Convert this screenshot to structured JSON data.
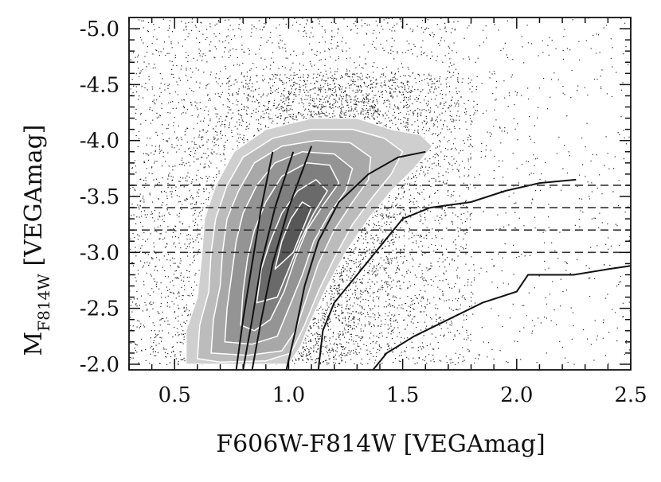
{
  "chart_data": {
    "type": "scatter",
    "title": "",
    "xlabel": "F606W-F814W [VEGAmag]",
    "ylabel_main": "M",
    "ylabel_sub": "F814W",
    "ylabel_tail": " [VEGAmag]",
    "xlim": [
      0.3,
      2.5
    ],
    "ylim": [
      -1.95,
      -5.1
    ],
    "y_inverted": true,
    "x_ticks": [
      0.5,
      1.0,
      1.5,
      2.0,
      2.5
    ],
    "x_tick_labels": [
      "0.5",
      "1.0",
      "1.5",
      "2.0",
      "2.5"
    ],
    "y_ticks": [
      -5.0,
      -4.5,
      -4.0,
      -3.5,
      -3.0,
      -2.5,
      -2.0
    ],
    "y_tick_labels": [
      "-5.0",
      "-4.5",
      "-4.0",
      "-3.5",
      "-3.0",
      "-2.5",
      "-2.0"
    ],
    "grid": false,
    "hlines": [
      -3.6,
      -3.4,
      -3.2,
      -3.0
    ],
    "scatter_note_points": 9000,
    "density_contours": [
      {
        "level": 1,
        "fill": "#cfcfcf",
        "points": [
          [
            0.55,
            -2.0
          ],
          [
            0.55,
            -2.3
          ],
          [
            0.6,
            -2.6
          ],
          [
            0.62,
            -3.0
          ],
          [
            0.63,
            -3.3
          ],
          [
            0.68,
            -3.6
          ],
          [
            0.76,
            -3.9
          ],
          [
            0.9,
            -4.1
          ],
          [
            1.1,
            -4.2
          ],
          [
            1.3,
            -4.2
          ],
          [
            1.45,
            -4.1
          ],
          [
            1.58,
            -4.05
          ],
          [
            1.63,
            -3.95
          ],
          [
            1.55,
            -3.75
          ],
          [
            1.45,
            -3.55
          ],
          [
            1.35,
            -3.3
          ],
          [
            1.25,
            -3.0
          ],
          [
            1.17,
            -2.7
          ],
          [
            1.1,
            -2.4
          ],
          [
            1.05,
            -2.15
          ],
          [
            1.0,
            -2.0
          ]
        ]
      },
      {
        "level": 2,
        "fill": "#bcbcbc",
        "points": [
          [
            0.6,
            -2.05
          ],
          [
            0.61,
            -2.35
          ],
          [
            0.65,
            -2.65
          ],
          [
            0.66,
            -3.0
          ],
          [
            0.68,
            -3.3
          ],
          [
            0.73,
            -3.6
          ],
          [
            0.8,
            -3.85
          ],
          [
            0.93,
            -4.02
          ],
          [
            1.1,
            -4.1
          ],
          [
            1.28,
            -4.1
          ],
          [
            1.42,
            -4.02
          ],
          [
            1.5,
            -3.9
          ],
          [
            1.45,
            -3.7
          ],
          [
            1.37,
            -3.5
          ],
          [
            1.28,
            -3.25
          ],
          [
            1.2,
            -2.95
          ],
          [
            1.13,
            -2.65
          ],
          [
            1.07,
            -2.35
          ],
          [
            1.01,
            -2.1
          ],
          [
            0.9,
            -2.03
          ],
          [
            0.7,
            -2.02
          ]
        ]
      },
      {
        "level": 3,
        "fill": "#a8a8a8",
        "points": [
          [
            0.66,
            -2.1
          ],
          [
            0.67,
            -2.4
          ],
          [
            0.7,
            -2.7
          ],
          [
            0.71,
            -3.0
          ],
          [
            0.73,
            -3.3
          ],
          [
            0.78,
            -3.55
          ],
          [
            0.85,
            -3.8
          ],
          [
            0.97,
            -3.95
          ],
          [
            1.12,
            -4.0
          ],
          [
            1.27,
            -3.98
          ],
          [
            1.36,
            -3.85
          ],
          [
            1.35,
            -3.65
          ],
          [
            1.28,
            -3.45
          ],
          [
            1.2,
            -3.2
          ],
          [
            1.13,
            -2.9
          ],
          [
            1.08,
            -2.6
          ],
          [
            1.03,
            -2.3
          ],
          [
            0.97,
            -2.12
          ],
          [
            0.82,
            -2.08
          ]
        ]
      },
      {
        "level": 4,
        "fill": "#949494",
        "points": [
          [
            0.72,
            -2.2
          ],
          [
            0.73,
            -2.5
          ],
          [
            0.75,
            -2.8
          ],
          [
            0.77,
            -3.1
          ],
          [
            0.8,
            -3.35
          ],
          [
            0.86,
            -3.6
          ],
          [
            0.94,
            -3.8
          ],
          [
            1.06,
            -3.9
          ],
          [
            1.2,
            -3.88
          ],
          [
            1.28,
            -3.75
          ],
          [
            1.25,
            -3.55
          ],
          [
            1.18,
            -3.35
          ],
          [
            1.11,
            -3.1
          ],
          [
            1.06,
            -2.8
          ],
          [
            1.0,
            -2.5
          ],
          [
            0.95,
            -2.25
          ],
          [
            0.84,
            -2.18
          ]
        ]
      },
      {
        "level": 5,
        "fill": "#7f7f7f",
        "points": [
          [
            0.79,
            -2.35
          ],
          [
            0.8,
            -2.65
          ],
          [
            0.82,
            -2.95
          ],
          [
            0.85,
            -3.2
          ],
          [
            0.9,
            -3.45
          ],
          [
            0.97,
            -3.68
          ],
          [
            1.08,
            -3.8
          ],
          [
            1.18,
            -3.78
          ],
          [
            1.22,
            -3.62
          ],
          [
            1.15,
            -3.42
          ],
          [
            1.08,
            -3.2
          ],
          [
            1.03,
            -2.95
          ],
          [
            0.98,
            -2.65
          ],
          [
            0.92,
            -2.4
          ],
          [
            0.85,
            -2.3
          ]
        ]
      },
      {
        "level": 6,
        "fill": "#6a6a6a",
        "points": [
          [
            0.86,
            -2.55
          ],
          [
            0.88,
            -2.85
          ],
          [
            0.92,
            -3.1
          ],
          [
            0.97,
            -3.35
          ],
          [
            1.04,
            -3.55
          ],
          [
            1.12,
            -3.65
          ],
          [
            1.17,
            -3.55
          ],
          [
            1.11,
            -3.35
          ],
          [
            1.05,
            -3.1
          ],
          [
            1.0,
            -2.85
          ],
          [
            0.95,
            -2.6
          ]
        ]
      },
      {
        "level": 7,
        "fill": "#575757",
        "points": [
          [
            0.94,
            -2.85
          ],
          [
            0.97,
            -3.1
          ],
          [
            1.01,
            -3.3
          ],
          [
            1.06,
            -3.45
          ],
          [
            1.1,
            -3.4
          ],
          [
            1.06,
            -3.2
          ],
          [
            1.02,
            -3.0
          ]
        ]
      }
    ],
    "curves": [
      {
        "points": [
          [
            0.77,
            -1.95
          ],
          [
            0.8,
            -2.4
          ],
          [
            0.84,
            -2.9
          ],
          [
            0.88,
            -3.4
          ],
          [
            0.93,
            -3.9
          ]
        ]
      },
      {
        "points": [
          [
            0.8,
            -1.95
          ],
          [
            0.84,
            -2.4
          ],
          [
            0.88,
            -2.9
          ],
          [
            0.94,
            -3.4
          ],
          [
            1.02,
            -3.9
          ]
        ]
      },
      {
        "points": [
          [
            0.84,
            -1.95
          ],
          [
            0.88,
            -2.4
          ],
          [
            0.93,
            -2.9
          ],
          [
            1.0,
            -3.4
          ],
          [
            1.1,
            -3.95
          ]
        ]
      },
      {
        "points": [
          [
            0.99,
            -1.95
          ],
          [
            1.03,
            -2.3
          ],
          [
            1.07,
            -2.7
          ],
          [
            1.13,
            -3.1
          ],
          [
            1.22,
            -3.45
          ],
          [
            1.35,
            -3.7
          ],
          [
            1.48,
            -3.85
          ],
          [
            1.6,
            -3.9
          ]
        ]
      },
      {
        "points": [
          [
            1.13,
            -1.95
          ],
          [
            1.15,
            -2.3
          ],
          [
            1.2,
            -2.55
          ],
          [
            1.3,
            -2.8
          ],
          [
            1.4,
            -3.05
          ],
          [
            1.5,
            -3.3
          ],
          [
            1.62,
            -3.4
          ],
          [
            1.8,
            -3.45
          ],
          [
            1.95,
            -3.55
          ],
          [
            2.1,
            -3.62
          ],
          [
            2.26,
            -3.65
          ]
        ]
      },
      {
        "points": [
          [
            1.37,
            -1.95
          ],
          [
            1.43,
            -2.1
          ],
          [
            1.55,
            -2.25
          ],
          [
            1.7,
            -2.4
          ],
          [
            1.85,
            -2.55
          ],
          [
            2.0,
            -2.65
          ],
          [
            2.05,
            -2.8
          ],
          [
            2.25,
            -2.8
          ],
          [
            2.4,
            -2.85
          ],
          [
            2.5,
            -2.88
          ]
        ]
      }
    ]
  }
}
